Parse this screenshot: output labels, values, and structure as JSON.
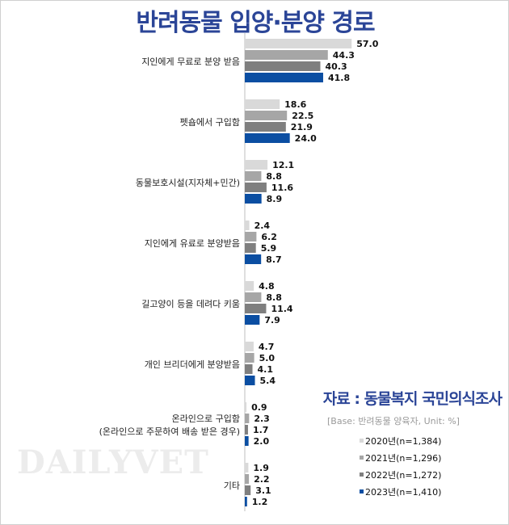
{
  "chart_data": {
    "type": "bar",
    "orientation": "horizontal",
    "title": "반려동물 입양·분양 경로",
    "categories": [
      [
        "지인에게 무료로 분양 받음"
      ],
      [
        "펫숍에서 구입함"
      ],
      [
        "동물보호시설(지자체+민간)"
      ],
      [
        "지인에게 유료로 분양받음"
      ],
      [
        "길고양이 등을 데려다 키움"
      ],
      [
        "개인 브리더에게 분양받음"
      ],
      [
        "온라인으로 구입함",
        "(온라인으로 주문하여 배송 받은 경우)"
      ],
      [
        "기타"
      ]
    ],
    "series": [
      {
        "name": "2020년(n=1,384)",
        "color": "#d9d9d9",
        "values": [
          57.0,
          18.6,
          12.1,
          2.4,
          4.8,
          4.7,
          0.9,
          1.9
        ]
      },
      {
        "name": "2021년(n=1,296)",
        "color": "#a6a6a6",
        "values": [
          44.3,
          22.5,
          8.8,
          6.2,
          8.8,
          5.0,
          2.3,
          2.2
        ]
      },
      {
        "name": "2022년(n=1,272)",
        "color": "#7f7f7f",
        "values": [
          40.3,
          21.9,
          11.6,
          5.9,
          11.4,
          4.1,
          1.7,
          3.1
        ]
      },
      {
        "name": "2023년(n=1,410)",
        "color": "#0b4ea2",
        "values": [
          41.8,
          24.0,
          8.9,
          8.7,
          7.9,
          5.4,
          2.0,
          1.2
        ]
      }
    ],
    "grid": false,
    "legend_position": "bottom-right"
  },
  "source": "자료 : 동물복지 국민의식조사",
  "base_note": "[Base: 반려동물 양육자, Unit: %]",
  "watermark": "DAILYVET"
}
